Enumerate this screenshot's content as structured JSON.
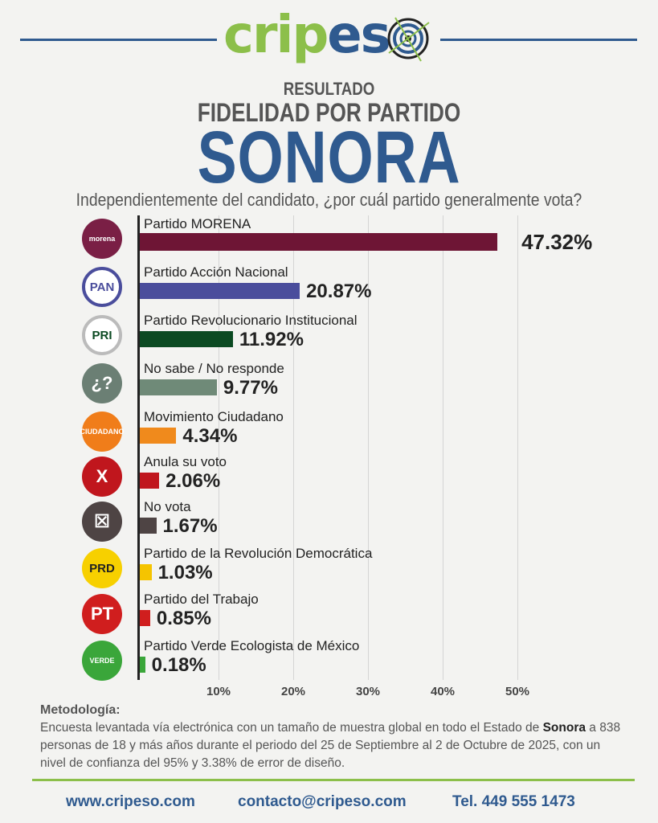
{
  "brand": {
    "logo_text_green": "crip",
    "logo_text_blue": "es",
    "colors": {
      "green": "#8cbf4a",
      "blue": "#2f5a8f"
    }
  },
  "header": {
    "line1": "RESULTADO",
    "line2": "FIDELIDAD POR PARTIDO",
    "line3": "SONORA",
    "question": "Independientemente del candidato, ¿por cuál partido generalmente vota?"
  },
  "chart_data": {
    "type": "bar",
    "orientation": "horizontal",
    "categories": [
      "Partido MORENA",
      "Partido Acción Nacional",
      "Partido Revolucionario Institucional",
      "No sabe / No responde",
      "Movimiento Ciudadano",
      "Anula su voto",
      "No vota",
      "Partido de la Revolución Democrática",
      "Partido del Trabajo",
      "Partido Verde Ecologista de México"
    ],
    "values": [
      47.32,
      20.87,
      11.92,
      9.77,
      4.34,
      2.06,
      1.67,
      1.03,
      0.85,
      0.18
    ],
    "value_labels": [
      "47.32%",
      "20.87%",
      "11.92%",
      "9.77%",
      "4.34%",
      "2.06%",
      "1.67%",
      "1.03%",
      "0.85%",
      "0.18%"
    ],
    "colors": [
      "#6e1535",
      "#4a4d9c",
      "#0b4a22",
      "#6f8a78",
      "#f08a1c",
      "#c0161d",
      "#4e4444",
      "#f5c400",
      "#d01e1e",
      "#3aa63a"
    ],
    "icons": [
      {
        "name": "morena-logo",
        "text": "morena",
        "bg": "#7a1f45"
      },
      {
        "name": "pan-logo",
        "text": "PAN",
        "bg": "#ffffff"
      },
      {
        "name": "pri-logo",
        "text": "PRI",
        "bg": "#ffffff"
      },
      {
        "name": "question-icon",
        "text": "¿?",
        "bg": "#6b7f74"
      },
      {
        "name": "movimiento-ciudadano-logo",
        "text": "CIUDADANO",
        "bg": "#f07d1a"
      },
      {
        "name": "null-vote-x-icon",
        "text": "X",
        "bg": "#c0161d"
      },
      {
        "name": "no-vote-ballot-icon",
        "text": "☒",
        "bg": "#4e4444"
      },
      {
        "name": "prd-logo",
        "text": "PRD",
        "bg": "#f7d000"
      },
      {
        "name": "pt-logo",
        "text": "PT",
        "bg": "#d01e1e"
      },
      {
        "name": "verde-logo",
        "text": "VERDE",
        "bg": "#3aa63a"
      }
    ],
    "xticks": [
      "10%",
      "20%",
      "30%",
      "40%",
      "50%"
    ],
    "xlim": [
      0,
      50
    ],
    "grid": true
  },
  "methodology": {
    "title": "Metodología:",
    "text1": "Encuesta levantada vía electrónica con un tamaño de muestra global en todo el Estado de",
    "bold": "Sonora",
    "text2": " a 838 personas de 18 y más años durante el periodo del 25 de Septiembre al 2 de Octubre de 2025, con un nivel de confianza del 95% y 3.38% de error de diseño."
  },
  "footer": {
    "web": "www.cripeso.com",
    "email": "contacto@cripeso.com",
    "phone": "Tel. 449 555 1473"
  }
}
